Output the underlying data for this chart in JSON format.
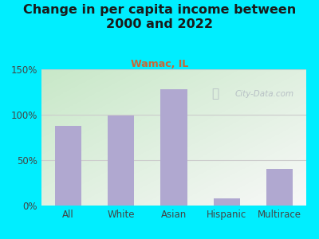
{
  "title": "Change in per capita income between\n2000 and 2022",
  "subtitle": "Wamac, IL",
  "categories": [
    "All",
    "White",
    "Asian",
    "Hispanic",
    "Multirace"
  ],
  "values": [
    88,
    99,
    128,
    8,
    40
  ],
  "bar_color": "#b0a8d0",
  "title_fontsize": 11.5,
  "subtitle_fontsize": 9,
  "subtitle_color": "#cc6633",
  "title_color": "#1a1a1a",
  "background_outer": "#00eeff",
  "ylim": [
    0,
    150
  ],
  "yticks": [
    0,
    50,
    100,
    150
  ],
  "ytick_labels": [
    "0%",
    "50%",
    "100%",
    "150%"
  ],
  "watermark": "City-Data.com",
  "watermark_color": "#b0b8c0",
  "grid_color": "#cccccc",
  "axis_label_color": "#444444",
  "bg_color_topleft": "#c8e8c8",
  "bg_color_bottomright": "#f0f0f0"
}
